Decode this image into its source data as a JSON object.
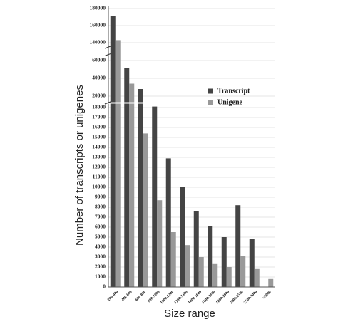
{
  "chart_data": {
    "type": "bar",
    "x_label": "Size range",
    "y_label": "Number of transcripts or unigenes",
    "categories": [
      "200-400",
      "400-600",
      "600-800",
      "800-1000",
      "1000-1200",
      "1200-1400",
      "1400-1600",
      "1600-1800",
      "1800-2000",
      "2000-2500",
      "2500-3000",
      ">3000"
    ],
    "series": [
      {
        "name": "Transcript",
        "color": "#444444",
        "values": [
          171000,
          52000,
          28000,
          18100,
          12900,
          10000,
          7600,
          6100,
          5000,
          8200,
          4800,
          null
        ]
      },
      {
        "name": "Unigene",
        "color": "#999999",
        "values": [
          143000,
          34000,
          15400,
          8700,
          5500,
          4200,
          3000,
          2300,
          2000,
          3100,
          1800,
          800
        ]
      }
    ],
    "ylim_segments": [
      [
        0,
        18500
      ],
      [
        12000,
        66000
      ],
      [
        135000,
        182000
      ]
    ],
    "yticks": [
      0,
      1000,
      2000,
      3000,
      4000,
      5000,
      6000,
      7000,
      8000,
      9000,
      10000,
      11000,
      12000,
      13000,
      14000,
      15000,
      16000,
      17000,
      18000,
      20000,
      40000,
      60000,
      140000,
      160000,
      180000
    ],
    "grid": true,
    "legend": "right"
  }
}
